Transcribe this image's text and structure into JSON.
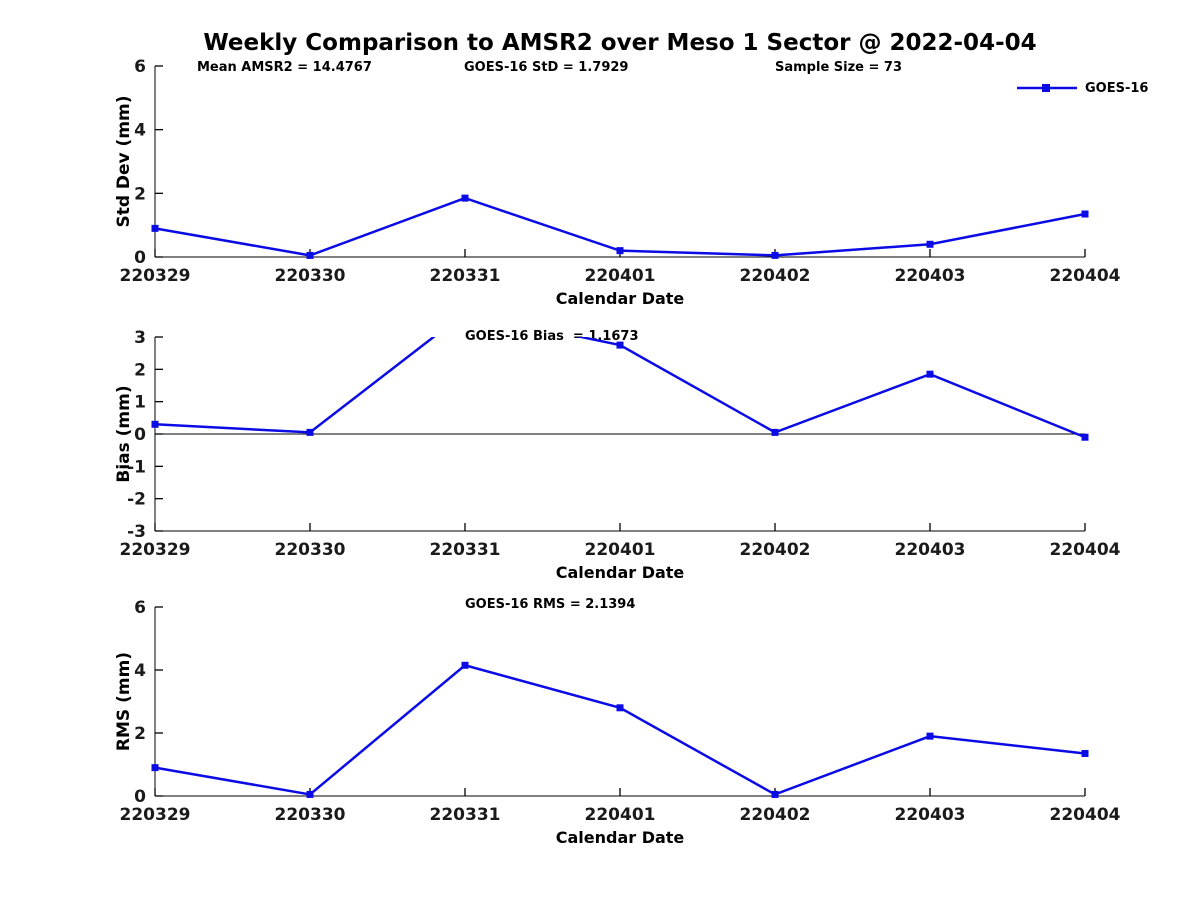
{
  "title": "Weekly Comparison to AMSR2 over Meso 1 Sector @ 2022-04-04",
  "colors": {
    "line": "#0b0be6",
    "axis": "#000000",
    "tick_label": "#1a1a1a",
    "text": "#000000",
    "background": "#ffffff"
  },
  "legend": {
    "label": "GOES-16",
    "position": "top-right"
  },
  "stats": {
    "mean_amsr2": "Mean AMSR2 = 14.4767",
    "goes16_std": "GOES-16 StD = 1.7929",
    "sample_size": "Sample Size = 73",
    "goes16_bias": "GOES-16 Bias  = 1.1673",
    "goes16_rms": "GOES-16 RMS = 2.1394"
  },
  "chart_data": [
    {
      "id": "stddev",
      "type": "line",
      "categories": [
        "220329",
        "220330",
        "220331",
        "220401",
        "220402",
        "220403",
        "220404"
      ],
      "series": [
        {
          "name": "GOES-16",
          "values": [
            0.9,
            0.05,
            1.85,
            0.2,
            0.05,
            0.4,
            1.35
          ]
        }
      ],
      "xlabel": "Calendar Date",
      "ylabel": "Std Dev (mm)",
      "ylim": [
        0,
        6
      ],
      "yticks": [
        0,
        2,
        4,
        6
      ],
      "grid": false,
      "zero_line": false,
      "annotations": [
        "Mean AMSR2 = 14.4767",
        "GOES-16 StD = 1.7929",
        "Sample Size = 73"
      ],
      "legend_position": "top-right"
    },
    {
      "id": "bias",
      "type": "line",
      "categories": [
        "220329",
        "220330",
        "220331",
        "220401",
        "220402",
        "220403",
        "220404"
      ],
      "series": [
        {
          "name": "GOES-16",
          "values": [
            0.3,
            0.05,
            3.75,
            2.75,
            0.05,
            1.85,
            -0.1
          ]
        }
      ],
      "xlabel": "Calendar Date",
      "ylabel": "Bias (mm)",
      "ylim": [
        -3,
        3
      ],
      "yticks": [
        -3,
        -2,
        -1,
        0,
        1,
        2,
        3
      ],
      "grid": false,
      "zero_line": true,
      "clip_note": "220331 value exceeds ylim max 3; line is clipped at top of axes",
      "annotations": [
        "GOES-16 Bias  = 1.1673"
      ]
    },
    {
      "id": "rms",
      "type": "line",
      "categories": [
        "220329",
        "220330",
        "220331",
        "220401",
        "220402",
        "220403",
        "220404"
      ],
      "series": [
        {
          "name": "GOES-16",
          "values": [
            0.9,
            0.05,
            4.15,
            2.8,
            0.05,
            1.9,
            1.35
          ]
        }
      ],
      "xlabel": "Calendar Date",
      "ylabel": "RMS (mm)",
      "ylim": [
        0,
        6
      ],
      "yticks": [
        0,
        2,
        4,
        6
      ],
      "grid": false,
      "zero_line": false,
      "annotations": [
        "GOES-16 RMS = 2.1394"
      ]
    }
  ]
}
